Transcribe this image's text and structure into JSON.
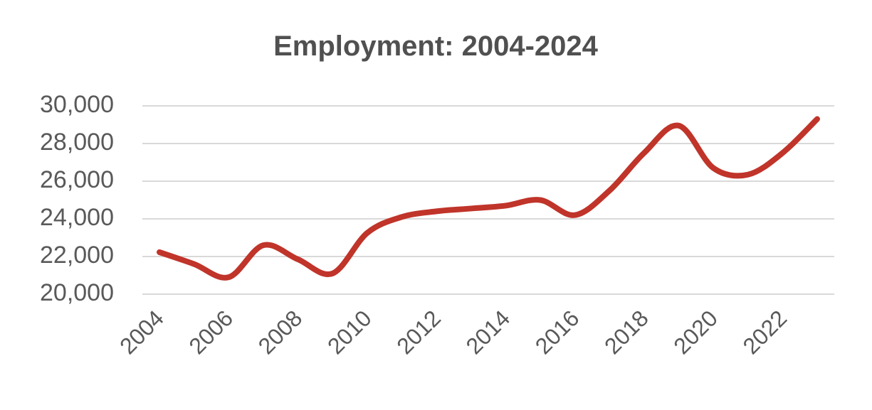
{
  "chart_data": {
    "type": "line",
    "title": "Employment: 2004-2024",
    "x": [
      2004,
      2005,
      2006,
      2007,
      2008,
      2009,
      2010,
      2011,
      2012,
      2013,
      2014,
      2015,
      2016,
      2017,
      2018,
      2019,
      2020,
      2021,
      2022,
      2023
    ],
    "series": [
      {
        "name": "Employment",
        "color": "#c0342a",
        "values": [
          22230,
          21600,
          20900,
          22600,
          21850,
          21100,
          23250,
          24100,
          24400,
          24550,
          24700,
          25000,
          24200,
          25500,
          27500,
          28950,
          26700,
          26350,
          27500,
          29300
        ]
      }
    ],
    "xlim": [
      2004,
      2023
    ],
    "xticks": [
      2004,
      2006,
      2008,
      2010,
      2012,
      2014,
      2016,
      2018,
      2020,
      2022
    ],
    "ylim": [
      20000,
      30000
    ],
    "yticks": [
      {
        "value": 20000,
        "label": "20,000"
      },
      {
        "value": 22000,
        "label": "22,000"
      },
      {
        "value": 24000,
        "label": "24,000"
      },
      {
        "value": 26000,
        "label": "26,000"
      },
      {
        "value": 28000,
        "label": "28,000"
      },
      {
        "value": 30000,
        "label": "30,000"
      }
    ],
    "grid": true
  }
}
